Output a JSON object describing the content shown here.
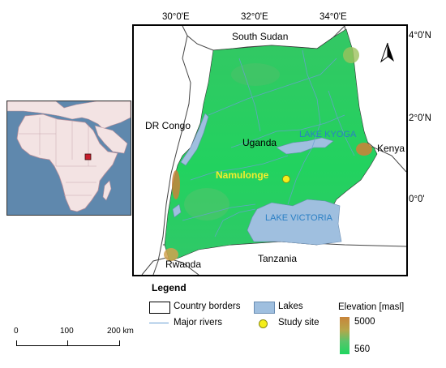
{
  "map": {
    "coords_top": [
      "30°0'E",
      "32°0'E",
      "34°0'E"
    ],
    "coords_right": [
      "4°0'N",
      "2°0'N",
      "0°0'"
    ],
    "countries": {
      "south_sudan": "South Sudan",
      "dr_congo": "DR Congo",
      "uganda": "Uganda",
      "kenya": "Kenya",
      "rwanda": "Rwanda",
      "tanzania": "Tanzania"
    },
    "lakes": {
      "kyoga": "LAKE KYOGA",
      "victoria": "LAKE VICTORIA"
    },
    "study_site": "Namulonge",
    "north_arrow": "north-arrow",
    "colors": {
      "lake": "#9fbfdf",
      "elevation_low": "#1fd660",
      "elevation_high": "#c8843a",
      "study_site": "#f5ee1a",
      "river": "#6a9fd4",
      "ocean": "#5f88ad",
      "inset_land": "#f3e3e3"
    }
  },
  "legend": {
    "title": "Legend",
    "country_borders": "Country borders",
    "lakes": "Lakes",
    "major_rivers": "Major rivers",
    "study_site": "Study site",
    "elevation_title": "Elevation [masl]",
    "elevation_max": "5000",
    "elevation_min": "560"
  },
  "scalebar": {
    "labels": [
      "0",
      "100",
      "200 km"
    ]
  }
}
